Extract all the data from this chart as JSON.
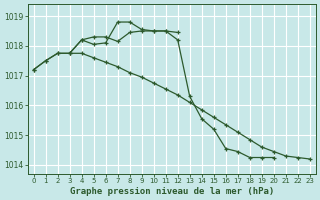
{
  "title": "Graphe pression niveau de la mer (hPa)",
  "bg_color": "#c8e8e8",
  "grid_color": "#ffffff",
  "line_color": "#2d5a2d",
  "ylim": [
    1013.7,
    1019.4
  ],
  "yticks": [
    1014,
    1015,
    1016,
    1017,
    1018,
    1019
  ],
  "xlim": [
    -0.5,
    23.5
  ],
  "xticks": [
    0,
    1,
    2,
    3,
    4,
    5,
    6,
    7,
    8,
    9,
    10,
    11,
    12,
    13,
    14,
    15,
    16,
    17,
    18,
    19,
    20,
    21,
    22,
    23
  ],
  "line1_x": [
    0,
    1,
    2,
    3,
    4,
    5,
    6,
    7,
    8,
    9,
    10,
    11,
    12,
    13,
    14,
    15,
    16,
    17,
    18,
    19,
    20
  ],
  "line1_y": [
    1017.2,
    1017.5,
    1017.75,
    1017.75,
    1018.2,
    1018.05,
    1018.1,
    1018.8,
    1018.8,
    1018.55,
    1018.5,
    1018.5,
    1018.2,
    1016.3,
    1015.55,
    1015.2,
    1014.55,
    1014.45,
    1014.25,
    1014.25,
    1014.25
  ],
  "line2_x": [
    0,
    1,
    2,
    3,
    4,
    5,
    6,
    7,
    8,
    9,
    10,
    11,
    12,
    13,
    14,
    15,
    16,
    17,
    18,
    19,
    20,
    21,
    22,
    23
  ],
  "line2_y": [
    1017.2,
    1017.5,
    1017.75,
    1017.75,
    1017.75,
    1017.6,
    1017.45,
    1017.3,
    1017.1,
    1016.95,
    1016.75,
    1016.55,
    1016.35,
    1016.1,
    1015.85,
    1015.6,
    1015.35,
    1015.1,
    1014.85,
    1014.6,
    1014.45,
    1014.3,
    1014.25,
    1014.2
  ],
  "line3_x": [
    3,
    4,
    5,
    6,
    7,
    8,
    9,
    10,
    11,
    12
  ],
  "line3_y": [
    1017.75,
    1018.2,
    1018.3,
    1018.3,
    1018.15,
    1018.45,
    1018.5,
    1018.5,
    1018.5,
    1018.45
  ],
  "title_fontsize": 6.5
}
